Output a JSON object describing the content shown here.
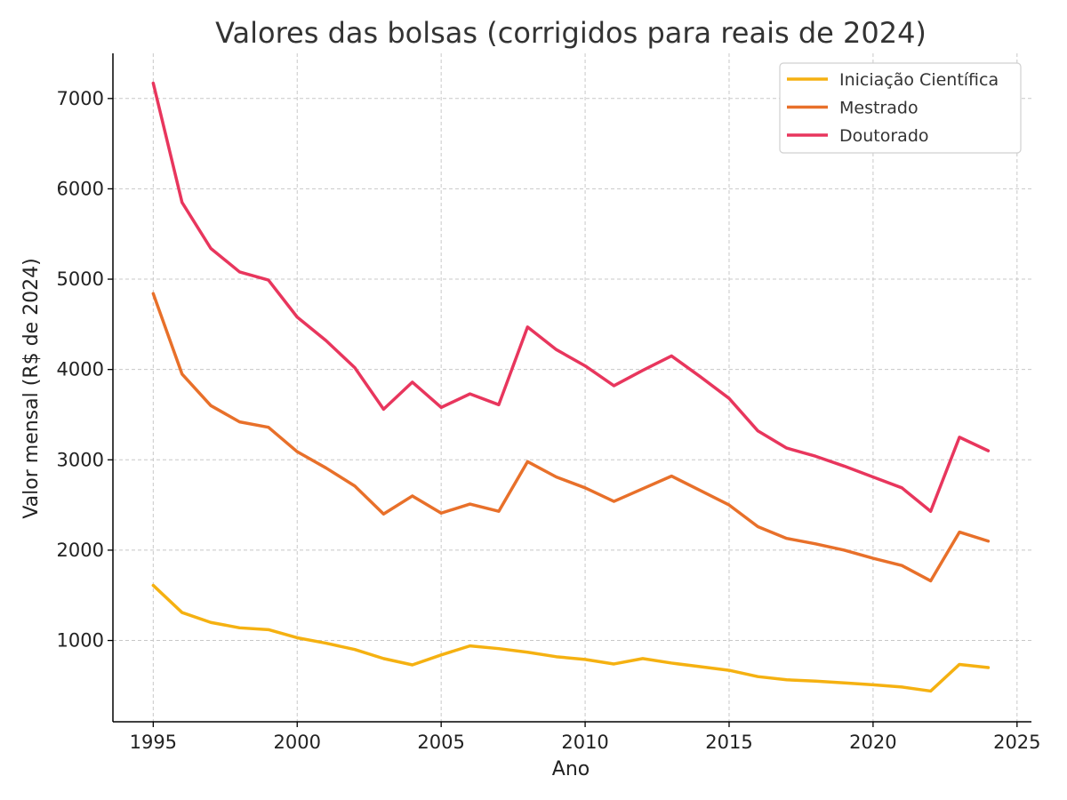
{
  "chart_data": {
    "type": "line",
    "title": "Valores das bolsas (corrigidos para reais de 2024)",
    "xlabel": "Ano",
    "ylabel": "Valor mensal (R$ de 2024)",
    "xlim": [
      1993.6,
      2025.5
    ],
    "ylim": [
      100,
      7500
    ],
    "xticks": [
      1995,
      2000,
      2005,
      2010,
      2015,
      2020,
      2025
    ],
    "yticks": [
      1000,
      2000,
      3000,
      4000,
      5000,
      6000,
      7000
    ],
    "grid": true,
    "legend_position": "top-right",
    "x": [
      1995,
      1996,
      1997,
      1998,
      1999,
      2000,
      2001,
      2002,
      2003,
      2004,
      2005,
      2006,
      2007,
      2008,
      2009,
      2010,
      2011,
      2012,
      2013,
      2014,
      2015,
      2016,
      2017,
      2018,
      2019,
      2020,
      2021,
      2022,
      2023,
      2024
    ],
    "series": [
      {
        "name": "Iniciação Científica",
        "color": "#F5B111",
        "values": [
          1610,
          1310,
          1200,
          1140,
          1120,
          1030,
          970,
          900,
          800,
          730,
          840,
          940,
          910,
          870,
          820,
          790,
          740,
          800,
          750,
          710,
          670,
          600,
          565,
          550,
          530,
          510,
          485,
          440,
          735,
          700
        ]
      },
      {
        "name": "Mestrado",
        "color": "#E8702A",
        "values": [
          4840,
          3950,
          3600,
          3420,
          3360,
          3090,
          2910,
          2710,
          2400,
          2600,
          2410,
          2510,
          2430,
          2980,
          2810,
          2690,
          2540,
          2680,
          2820,
          2660,
          2500,
          2260,
          2130,
          2070,
          2000,
          1910,
          1830,
          1660,
          2200,
          2100
        ]
      },
      {
        "name": "Doutorado",
        "color": "#E8365D",
        "values": [
          7170,
          5850,
          5340,
          5080,
          4990,
          4580,
          4320,
          4020,
          3560,
          3860,
          3580,
          3730,
          3610,
          4470,
          4220,
          4040,
          3820,
          3990,
          4150,
          3920,
          3680,
          3320,
          3130,
          3040,
          2930,
          2810,
          2690,
          2430,
          3250,
          3100
        ]
      }
    ]
  }
}
